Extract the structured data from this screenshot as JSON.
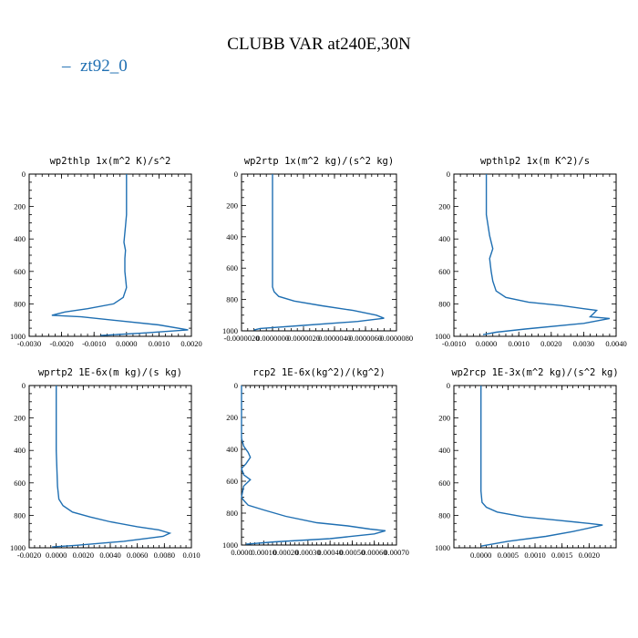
{
  "figure": {
    "title": "CLUBB VAR at240E,30N",
    "legend_label": "zt92_0",
    "colors": {
      "series": "#1f6fb2",
      "axes": "#000000"
    }
  },
  "chart_data": [
    {
      "type": "line",
      "title": "wp2thlp  1x(m^2 K)/s^2",
      "xlim": [
        -0.003,
        0.002
      ],
      "xticks": [
        -0.003,
        -0.002,
        -0.001,
        0.0,
        0.001,
        0.002
      ],
      "xtick_labels": [
        "-0.0030",
        "-0.0020",
        "-0.0010",
        "0.0000",
        "0.0010",
        "0.0020"
      ],
      "ylim": [
        0,
        1000
      ],
      "y_inverted": true,
      "yticks": [
        0,
        200,
        400,
        600,
        800,
        1000
      ],
      "ytick_labels": [
        "0",
        "200",
        "400",
        "600",
        "800",
        "1000"
      ],
      "series": [
        {
          "name": "zt92_0",
          "x": [
            0.0,
            0.0,
            -3e-05,
            -8e-05,
            -3e-05,
            -5e-05,
            -5e-05,
            0.0,
            -0.0001,
            -0.0004,
            -0.0012,
            -0.0019,
            -0.0023,
            -0.0014,
            0.001,
            0.0019,
            0.0005,
            -0.0008
          ],
          "y": [
            0,
            250,
            320,
            420,
            470,
            520,
            600,
            700,
            760,
            800,
            830,
            850,
            870,
            880,
            930,
            960,
            980,
            995
          ]
        }
      ]
    },
    {
      "type": "line",
      "title": "wp2rtp  1x(m^2 kg)/(s^2 kg)",
      "xlim": [
        -2e-06,
        8e-06
      ],
      "xticks": [
        -2e-06,
        0.0,
        2e-06,
        4e-06,
        6e-06,
        8e-06
      ],
      "xtick_labels": [
        "-0.0000020",
        "0.0000000",
        "0.0000020",
        "0.0000040",
        "0.0000060",
        "0.0000080"
      ],
      "ylim": [
        0,
        1000
      ],
      "y_inverted": true,
      "yticks": [
        0,
        200,
        400,
        600,
        800,
        1000
      ],
      "ytick_labels": [
        "0",
        "200",
        "400",
        "600",
        "800",
        "1000"
      ],
      "series": [
        {
          "name": "zt92_0",
          "x": [
            0.0,
            0.0,
            0.0,
            0.0,
            1e-07,
            4e-07,
            1.4e-06,
            3.2e-06,
            5.2e-06,
            6.7e-06,
            7.2e-06,
            5.5e-06,
            2e-06,
            -8e-07,
            -1.2e-06
          ],
          "y": [
            0,
            300,
            600,
            720,
            750,
            780,
            810,
            840,
            870,
            900,
            920,
            940,
            965,
            985,
            995
          ]
        }
      ]
    },
    {
      "type": "line",
      "title": "wpthlp2  1x(m K^2)/s",
      "xlim": [
        -0.001,
        0.004
      ],
      "xticks": [
        -0.001,
        0.0,
        0.001,
        0.002,
        0.003,
        0.004
      ],
      "xtick_labels": [
        "-0.0010",
        "0.0000",
        "0.0010",
        "0.0020",
        "0.0030",
        "0.0040"
      ],
      "ylim": [
        0,
        1000
      ],
      "y_inverted": true,
      "yticks": [
        0,
        200,
        400,
        600,
        800,
        1000
      ],
      "ytick_labels": [
        "0",
        "200",
        "400",
        "600",
        "800",
        "1000"
      ],
      "series": [
        {
          "name": "zt92_0",
          "x": [
            0.0,
            0.0,
            0.0001,
            0.0002,
            0.0001,
            0.00015,
            0.0002,
            0.0003,
            0.0006,
            0.0013,
            0.0023,
            0.003,
            0.0034,
            0.0033,
            0.0032,
            0.0038,
            0.003,
            0.0012,
            0.0003,
            -0.0001
          ],
          "y": [
            0,
            250,
            380,
            460,
            520,
            600,
            660,
            720,
            760,
            790,
            810,
            830,
            840,
            860,
            880,
            890,
            920,
            955,
            975,
            990
          ]
        }
      ]
    },
    {
      "type": "line",
      "title": "wprtp2  1E-6x(m kg)/(s kg)",
      "xlim": [
        -0.002,
        0.01
      ],
      "xticks": [
        -0.002,
        0.0,
        0.002,
        0.004,
        0.006,
        0.008,
        0.01
      ],
      "xtick_labels": [
        "-0.0020",
        "0.0000",
        "0.0020",
        "0.0040",
        "0.0060",
        "0.0080",
        "0.010"
      ],
      "ylim": [
        0,
        1000
      ],
      "y_inverted": true,
      "yticks": [
        0,
        200,
        400,
        600,
        800,
        1000
      ],
      "ytick_labels": [
        "0",
        "200",
        "400",
        "600",
        "800",
        "1000"
      ],
      "series": [
        {
          "name": "zt92_0",
          "x": [
            0.0,
            0.0,
            0.0001,
            0.0002,
            0.0005,
            0.0012,
            0.0025,
            0.004,
            0.006,
            0.0076,
            0.0084,
            0.0079,
            0.005,
            0.0015,
            -0.0003
          ],
          "y": [
            0,
            400,
            620,
            700,
            740,
            780,
            810,
            840,
            870,
            890,
            910,
            930,
            960,
            985,
            995
          ]
        }
      ]
    },
    {
      "type": "line",
      "title": "rcp2  1E-6x(kg^2)/(kg^2)",
      "xlim": [
        0,
        0.0007
      ],
      "xticks": [
        0,
        0.0001,
        0.0002,
        0.0003,
        0.0004,
        0.0005,
        0.0006,
        0.0007
      ],
      "xtick_labels": [
        "0.0000",
        "0.00010",
        "0.00020",
        "0.00030",
        "0.00040",
        "0.00050",
        "0.00060",
        "0.00070"
      ],
      "ylim": [
        0,
        1000
      ],
      "y_inverted": true,
      "yticks": [
        0,
        200,
        400,
        600,
        800,
        1000
      ],
      "ytick_labels": [
        "0",
        "200",
        "400",
        "600",
        "800",
        "1000"
      ],
      "series": [
        {
          "name": "zt92_0",
          "x": [
            0.0,
            0.0,
            1e-05,
            3e-05,
            4e-05,
            2e-05,
            0.0,
            1e-05,
            4e-05,
            1e-05,
            0.0,
            1e-05,
            3e-05,
            0.0001,
            0.0002,
            0.00034,
            0.00048,
            0.00058,
            0.00065,
            0.0006,
            0.0004,
            0.00015,
            2e-05
          ],
          "y": [
            0,
            330,
            380,
            420,
            450,
            490,
            520,
            560,
            590,
            630,
            700,
            720,
            750,
            780,
            820,
            860,
            880,
            900,
            910,
            930,
            960,
            980,
            995
          ]
        }
      ]
    },
    {
      "type": "line",
      "title": "wp2rcp  1E-3x(m^2 kg)/(s^2 kg)",
      "xlim": [
        -0.0005,
        0.0025
      ],
      "xticks": [
        0.0,
        0.0005,
        0.001,
        0.0015,
        0.002
      ],
      "xtick_labels": [
        "0.0000",
        "0.0005",
        "0.0010",
        "0.0015",
        "0.0020"
      ],
      "ylim": [
        0,
        1000
      ],
      "y_inverted": true,
      "yticks": [
        0,
        200,
        400,
        600,
        800,
        1000
      ],
      "ytick_labels": [
        "0",
        "200",
        "400",
        "600",
        "800",
        "1000"
      ],
      "series": [
        {
          "name": "zt92_0",
          "x": [
            0.0,
            0.0,
            2e-05,
            0.0001,
            0.0003,
            0.0008,
            0.0014,
            0.002,
            0.00225,
            0.0017,
            0.0012,
            0.0005,
            0.0
          ],
          "y": [
            0,
            650,
            720,
            750,
            780,
            810,
            830,
            850,
            860,
            900,
            930,
            960,
            990
          ]
        }
      ]
    }
  ]
}
